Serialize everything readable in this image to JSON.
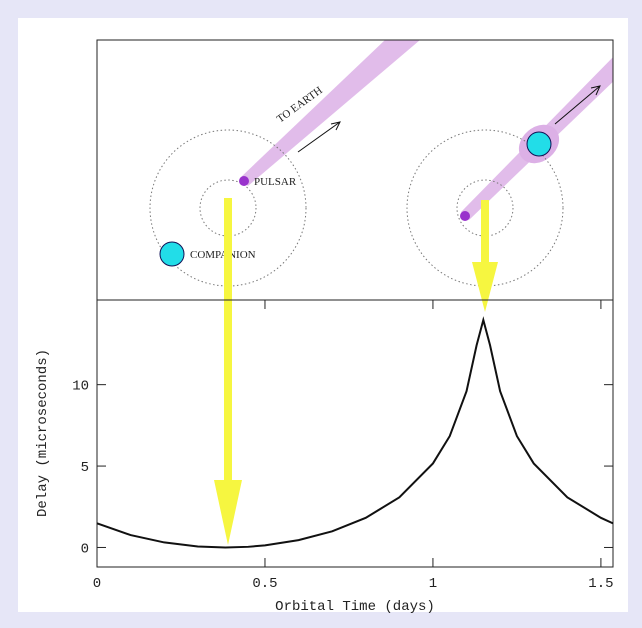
{
  "chart_data": {
    "type": "line",
    "xlabel": "Orbital Time (days)",
    "ylabel": "Delay (microseconds)",
    "annotations": [
      "TO EARTH",
      "PULSAR",
      "COMPANION"
    ],
    "x": [
      0,
      0.1,
      0.2,
      0.3,
      0.382,
      0.45,
      0.5,
      0.6,
      0.7,
      0.8,
      0.9,
      1.0,
      1.05,
      1.1,
      1.13,
      1.15,
      1.17,
      1.2,
      1.25,
      1.3,
      1.4,
      1.5,
      1.536
    ],
    "series": [
      {
        "color": "#111111",
        "values": [
          1.48,
          0.76,
          0.31,
          0.06,
          0,
          0.04,
          0.13,
          0.45,
          0.99,
          1.82,
          3.08,
          5.16,
          6.84,
          9.6,
          12.42,
          13.97,
          12.42,
          9.6,
          6.84,
          5.16,
          3.08,
          1.82,
          1.48
        ]
      }
    ],
    "xlim": [
      0,
      1.536
    ],
    "ylim": [
      -1.2,
      15.2
    ],
    "xticks": [
      0,
      0.5,
      1,
      1.5
    ],
    "yticks": [
      0,
      5,
      10
    ]
  }
}
